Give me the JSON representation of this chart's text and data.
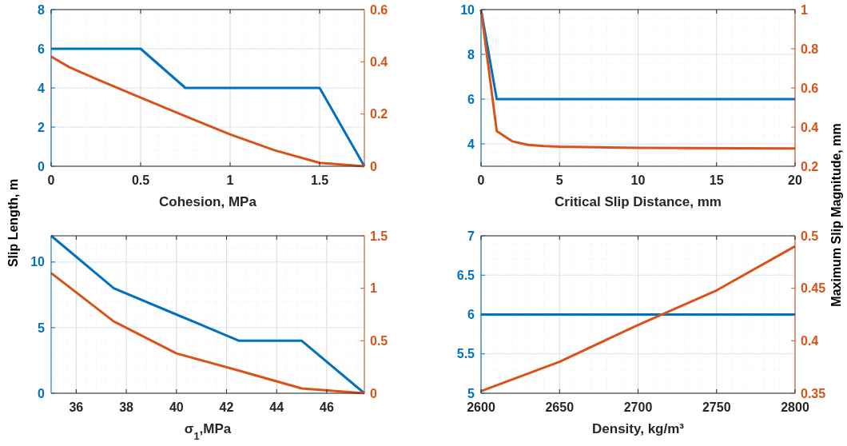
{
  "chart_data": [
    {
      "type": "line",
      "xlabel": "Cohesion, MPa",
      "ylabel": "Slip Length, m",
      "xlim": [
        0,
        1.75
      ],
      "xticks": [
        0,
        0.5,
        1,
        1.5
      ],
      "ylim": [
        0,
        8
      ],
      "yticks": [
        0,
        2,
        4,
        6,
        8
      ],
      "y2lim": [
        0,
        0.6
      ],
      "y2ticks": [
        0,
        0.2,
        0.4,
        0.6
      ],
      "grid": true,
      "series": [
        {
          "color": "#0072bd",
          "x": [
            0,
            0.5,
            0.75,
            1.5,
            1.75
          ],
          "values": [
            6,
            6,
            4,
            4,
            0
          ]
        },
        {
          "color": "#d95319",
          "axis": "y2",
          "x": [
            0,
            0.1,
            0.25,
            0.5,
            0.75,
            1,
            1.25,
            1.5,
            1.75
          ],
          "values": [
            0.42,
            0.38,
            0.335,
            0.263,
            0.192,
            0.122,
            0.061,
            0.013,
            0
          ]
        }
      ]
    },
    {
      "type": "line",
      "xlabel": "Critical Slip Distance, mm",
      "y2label": "Maximum Slip Magnitude, mm",
      "xlim": [
        0,
        20
      ],
      "xticks": [
        0,
        5,
        10,
        15,
        20
      ],
      "ylim": [
        3,
        10
      ],
      "yticks": [
        4,
        6,
        8,
        10
      ],
      "y2lim": [
        0.2,
        1
      ],
      "y2ticks": [
        0.2,
        0.4,
        0.6,
        0.8,
        1
      ],
      "grid": true,
      "series": [
        {
          "color": "#0072bd",
          "x": [
            0,
            1,
            20
          ],
          "values": [
            10,
            6,
            6
          ]
        },
        {
          "color": "#d95319",
          "axis": "y2",
          "x": [
            0,
            1,
            2,
            3,
            4,
            5,
            10,
            20
          ],
          "values": [
            1,
            0.38,
            0.327,
            0.309,
            0.303,
            0.3,
            0.294,
            0.291
          ]
        }
      ]
    },
    {
      "type": "line",
      "xlabel": "σ$_{1}$,MPa",
      "xlim": [
        35,
        47.5
      ],
      "xticks": [
        36,
        38,
        40,
        42,
        44,
        46
      ],
      "ylim": [
        0,
        12
      ],
      "yticks": [
        0,
        5,
        10
      ],
      "y2lim": [
        0,
        1.5
      ],
      "y2ticks": [
        0,
        0.5,
        1,
        1.5
      ],
      "grid": true,
      "series": [
        {
          "color": "#0072bd",
          "x": [
            35,
            37.5,
            40,
            42.5,
            45,
            47.5
          ],
          "values": [
            12,
            8,
            6,
            4,
            4,
            0
          ]
        },
        {
          "color": "#d95319",
          "axis": "y2",
          "x": [
            35,
            37.5,
            40,
            42.5,
            45,
            47.5
          ],
          "values": [
            1.145,
            0.684,
            0.38,
            0.215,
            0.046,
            0
          ]
        }
      ]
    },
    {
      "type": "line",
      "xlabel": "Density, kg/m³",
      "xlim": [
        2600,
        2800
      ],
      "xticks": [
        2600,
        2650,
        2700,
        2750,
        2800
      ],
      "ylim": [
        5,
        7
      ],
      "yticks": [
        5,
        5.5,
        6,
        6.5,
        7
      ],
      "y2lim": [
        0.35,
        0.5
      ],
      "y2ticks": [
        0.35,
        0.4,
        0.45,
        0.5
      ],
      "grid": true,
      "series": [
        {
          "color": "#0072bd",
          "x": [
            2600,
            2650,
            2700,
            2750,
            2800
          ],
          "values": [
            6,
            6,
            6,
            6,
            6
          ]
        },
        {
          "color": "#d95319",
          "axis": "y2",
          "x": [
            2600,
            2650,
            2700,
            2750,
            2800
          ],
          "values": [
            0.352,
            0.38,
            0.415,
            0.448,
            0.49
          ]
        }
      ]
    }
  ]
}
